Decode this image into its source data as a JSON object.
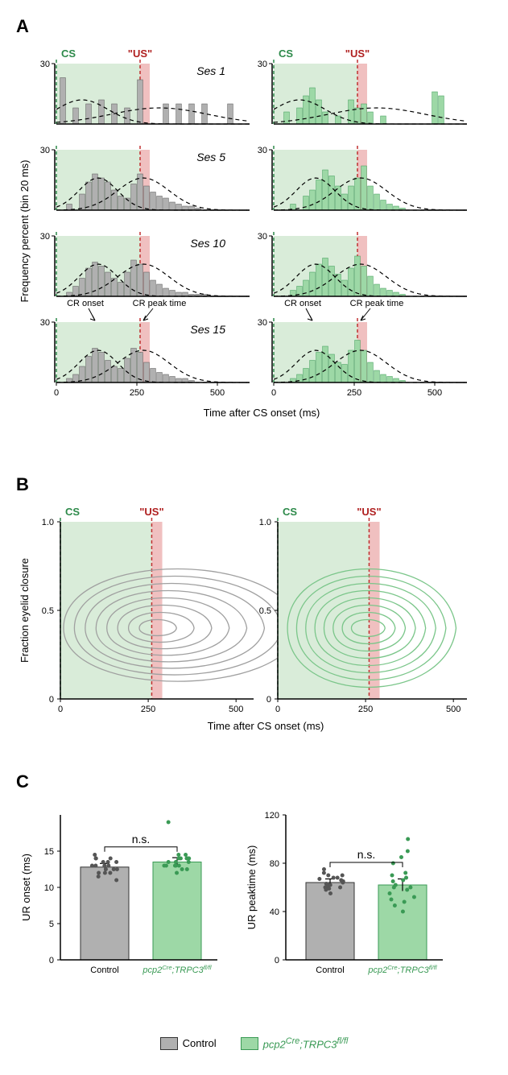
{
  "colors": {
    "control_fill": "#b0b0b0",
    "control_stroke": "#555555",
    "mutant_fill": "#9dd8a6",
    "mutant_stroke": "#3a9a55",
    "cs_zone": "#d9ecd9",
    "us_zone": "#f0c0c0",
    "cs_line": "#2d8a4a",
    "us_line": "#c03030",
    "contour_control": "#a0a0a0",
    "contour_mutant": "#7bc68a"
  },
  "panelA": {
    "label": "A",
    "cs_label": "CS",
    "us_label": "\"US\"",
    "xlabel": "Time after CS onset (ms)",
    "ylabel": "Frequency percent (bin 20 ms)",
    "ymax": 30,
    "xmax": 600,
    "xticks": [
      0,
      250,
      500
    ],
    "yticks": [
      0,
      30
    ],
    "us_time": 260,
    "us_width": 30,
    "sessions": [
      "Ses 1",
      "Ses 5",
      "Ses 10",
      "Ses 15"
    ],
    "annotations": {
      "cr_onset": "CR onset",
      "cr_peak": "CR peak time"
    },
    "control_data": [
      [
        [
          20,
          23
        ],
        [
          60,
          8
        ],
        [
          100,
          10
        ],
        [
          140,
          12
        ],
        [
          180,
          10
        ],
        [
          220,
          8
        ],
        [
          260,
          22
        ],
        [
          300,
          0
        ],
        [
          340,
          10
        ],
        [
          380,
          10
        ],
        [
          420,
          10
        ],
        [
          460,
          10
        ],
        [
          500,
          0
        ],
        [
          540,
          10
        ]
      ],
      [
        [
          40,
          3
        ],
        [
          80,
          8
        ],
        [
          100,
          14
        ],
        [
          120,
          18
        ],
        [
          140,
          16
        ],
        [
          160,
          14
        ],
        [
          180,
          10
        ],
        [
          200,
          7
        ],
        [
          220,
          6
        ],
        [
          240,
          13
        ],
        [
          260,
          18
        ],
        [
          280,
          12
        ],
        [
          300,
          9
        ],
        [
          320,
          7
        ],
        [
          340,
          6
        ],
        [
          360,
          4
        ],
        [
          380,
          3
        ],
        [
          400,
          2
        ],
        [
          420,
          2
        ],
        [
          440,
          1
        ]
      ],
      [
        [
          40,
          2
        ],
        [
          60,
          5
        ],
        [
          80,
          9
        ],
        [
          100,
          14
        ],
        [
          120,
          17
        ],
        [
          140,
          15
        ],
        [
          160,
          12
        ],
        [
          180,
          9
        ],
        [
          200,
          7
        ],
        [
          220,
          12
        ],
        [
          240,
          18
        ],
        [
          260,
          16
        ],
        [
          280,
          12
        ],
        [
          300,
          8
        ],
        [
          320,
          6
        ],
        [
          340,
          4
        ],
        [
          360,
          3
        ],
        [
          380,
          2
        ],
        [
          400,
          2
        ],
        [
          420,
          1
        ],
        [
          440,
          1
        ],
        [
          460,
          1
        ]
      ],
      [
        [
          40,
          2
        ],
        [
          60,
          4
        ],
        [
          80,
          8
        ],
        [
          100,
          13
        ],
        [
          120,
          17
        ],
        [
          140,
          15
        ],
        [
          160,
          11
        ],
        [
          180,
          8
        ],
        [
          200,
          7
        ],
        [
          220,
          12
        ],
        [
          240,
          17
        ],
        [
          260,
          15
        ],
        [
          280,
          10
        ],
        [
          300,
          7
        ],
        [
          320,
          5
        ],
        [
          340,
          4
        ],
        [
          360,
          3
        ],
        [
          380,
          2
        ],
        [
          400,
          2
        ],
        [
          420,
          1
        ]
      ]
    ],
    "mutant_data": [
      [
        [
          40,
          6
        ],
        [
          80,
          8
        ],
        [
          100,
          14
        ],
        [
          120,
          18
        ],
        [
          140,
          12
        ],
        [
          160,
          6
        ],
        [
          200,
          4
        ],
        [
          240,
          12
        ],
        [
          260,
          8
        ],
        [
          280,
          10
        ],
        [
          300,
          6
        ],
        [
          340,
          4
        ],
        [
          500,
          16
        ],
        [
          520,
          14
        ]
      ],
      [
        [
          60,
          3
        ],
        [
          100,
          7
        ],
        [
          120,
          10
        ],
        [
          140,
          15
        ],
        [
          160,
          20
        ],
        [
          180,
          17
        ],
        [
          200,
          12
        ],
        [
          220,
          8
        ],
        [
          240,
          12
        ],
        [
          260,
          16
        ],
        [
          280,
          22
        ],
        [
          300,
          12
        ],
        [
          320,
          8
        ],
        [
          340,
          5
        ],
        [
          360,
          3
        ],
        [
          380,
          2
        ],
        [
          400,
          1
        ]
      ],
      [
        [
          60,
          3
        ],
        [
          80,
          5
        ],
        [
          100,
          8
        ],
        [
          120,
          12
        ],
        [
          140,
          16
        ],
        [
          160,
          19
        ],
        [
          180,
          15
        ],
        [
          200,
          11
        ],
        [
          220,
          8
        ],
        [
          240,
          14
        ],
        [
          260,
          20
        ],
        [
          280,
          15
        ],
        [
          300,
          10
        ],
        [
          320,
          6
        ],
        [
          340,
          4
        ],
        [
          360,
          3
        ],
        [
          380,
          2
        ],
        [
          400,
          1
        ]
      ],
      [
        [
          60,
          2
        ],
        [
          80,
          4
        ],
        [
          100,
          7
        ],
        [
          120,
          11
        ],
        [
          140,
          15
        ],
        [
          160,
          18
        ],
        [
          180,
          14
        ],
        [
          200,
          10
        ],
        [
          220,
          9
        ],
        [
          240,
          16
        ],
        [
          260,
          21
        ],
        [
          280,
          16
        ],
        [
          300,
          10
        ],
        [
          320,
          6
        ],
        [
          340,
          4
        ],
        [
          360,
          3
        ],
        [
          380,
          2
        ],
        [
          400,
          1
        ]
      ]
    ]
  },
  "panelB": {
    "label": "B",
    "cs_label": "CS",
    "us_label": "\"US\"",
    "xlabel": "Time after CS onset (ms)",
    "ylabel": "Fraction eyelid closure",
    "yticks": [
      0,
      0.5,
      1.0
    ],
    "xticks": [
      0,
      250,
      500
    ],
    "us_time": 260,
    "us_width": 30
  },
  "panelC": {
    "label": "C",
    "ns": "n.s.",
    "left": {
      "ylabel": "UR onset (ms)",
      "ymax": 20,
      "yticks": [
        0,
        5,
        10,
        15
      ],
      "categories": [
        "Control",
        "pcp2^Cre;TRPC3^fl/fl"
      ],
      "means": [
        12.8,
        13.5
      ],
      "sems": [
        0.5,
        0.6
      ],
      "control_points": [
        12,
        13.5,
        14,
        12.5,
        13,
        11.5,
        13.5,
        12,
        14.5,
        13,
        12.5,
        11,
        13.5,
        14,
        12,
        13,
        12.5,
        14,
        13
      ],
      "mutant_points": [
        13,
        14,
        13.5,
        12.5,
        14.5,
        13,
        12,
        14,
        13.5,
        13,
        14,
        19,
        14.5,
        13,
        12.5,
        14,
        13.5,
        13,
        14
      ]
    },
    "right": {
      "ylabel": "UR peaktime (ms)",
      "ymax": 120,
      "yticks": [
        0,
        40,
        80,
        120
      ],
      "categories": [
        "Control",
        "pcp2^Cre;TRPC3^fl/fl"
      ],
      "means": [
        64,
        62
      ],
      "sems": [
        3,
        5
      ],
      "control_points": [
        60,
        70,
        65,
        55,
        62,
        68,
        60,
        72,
        58,
        63,
        67,
        75,
        61,
        59,
        66,
        70,
        64,
        62,
        68
      ],
      "mutant_points": [
        70,
        60,
        45,
        80,
        65,
        50,
        55,
        90,
        62,
        40,
        68,
        100,
        58,
        48,
        72,
        60,
        85,
        52,
        66
      ]
    }
  },
  "legend": {
    "control": "Control",
    "mutant": "pcp2^Cre;TRPC3^fl/fl"
  }
}
